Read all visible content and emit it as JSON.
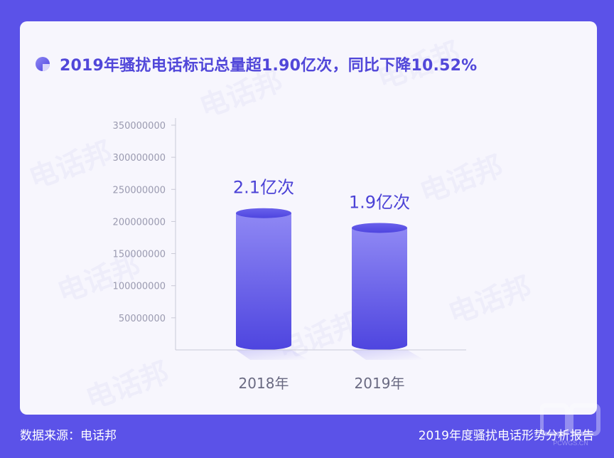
{
  "title": "2019年骚扰电话标记总量超1.90亿次，同比下降10.52%",
  "watermark_text": "电话邦",
  "footer": {
    "source": "数据来源：电话邦",
    "report": "2019年度骚扰电话形势分析报告"
  },
  "logo_text": "PCWGS.CN",
  "colors": {
    "background": "#5b52e8",
    "title": "#5147d9",
    "bar_top": "#8f88f4",
    "bar_bottom": "#4e45df",
    "axis_text": "#9a9ab0"
  },
  "chart_data": {
    "type": "bar",
    "categories": [
      "2018年",
      "2019年"
    ],
    "values": [
      213000000,
      190000000
    ],
    "data_labels": [
      "2.1亿次",
      "1.9亿次"
    ],
    "yticks": [
      50000000,
      100000000,
      150000000,
      200000000,
      250000000,
      300000000,
      350000000
    ],
    "ytick_labels": [
      "50000000",
      "100000000",
      "150000000",
      "200000000",
      "250000000",
      "300000000",
      "350000000"
    ],
    "ylim": [
      0,
      350000000
    ],
    "xlabel": "",
    "ylabel": "",
    "grid": false
  }
}
